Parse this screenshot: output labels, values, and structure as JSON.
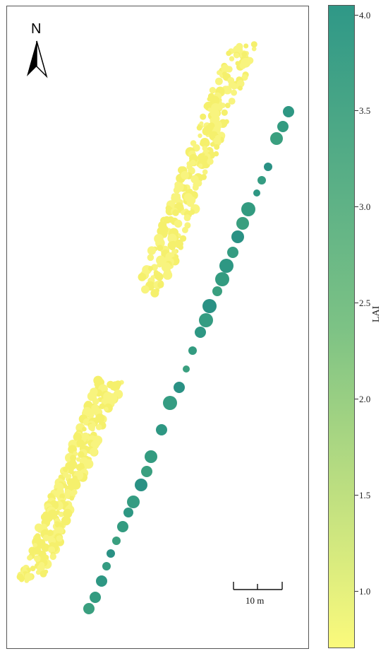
{
  "map": {
    "north_label": "N",
    "north_arrow_icon": "north-arrow-icon",
    "scale_bar_label": "10 m",
    "low_lai_color": "#f7f37a",
    "high_lai_color": "#2e9a82"
  },
  "legend": {
    "title": "LAI",
    "ticks": [
      "1.0",
      "1.5",
      "2.0",
      "2.5",
      "3.0",
      "3.5",
      "4.0"
    ],
    "min": 0.7,
    "max": 4.05,
    "color_low": "#fbfa7c",
    "color_mid": "#7cc285",
    "color_high": "#2f9887"
  }
}
